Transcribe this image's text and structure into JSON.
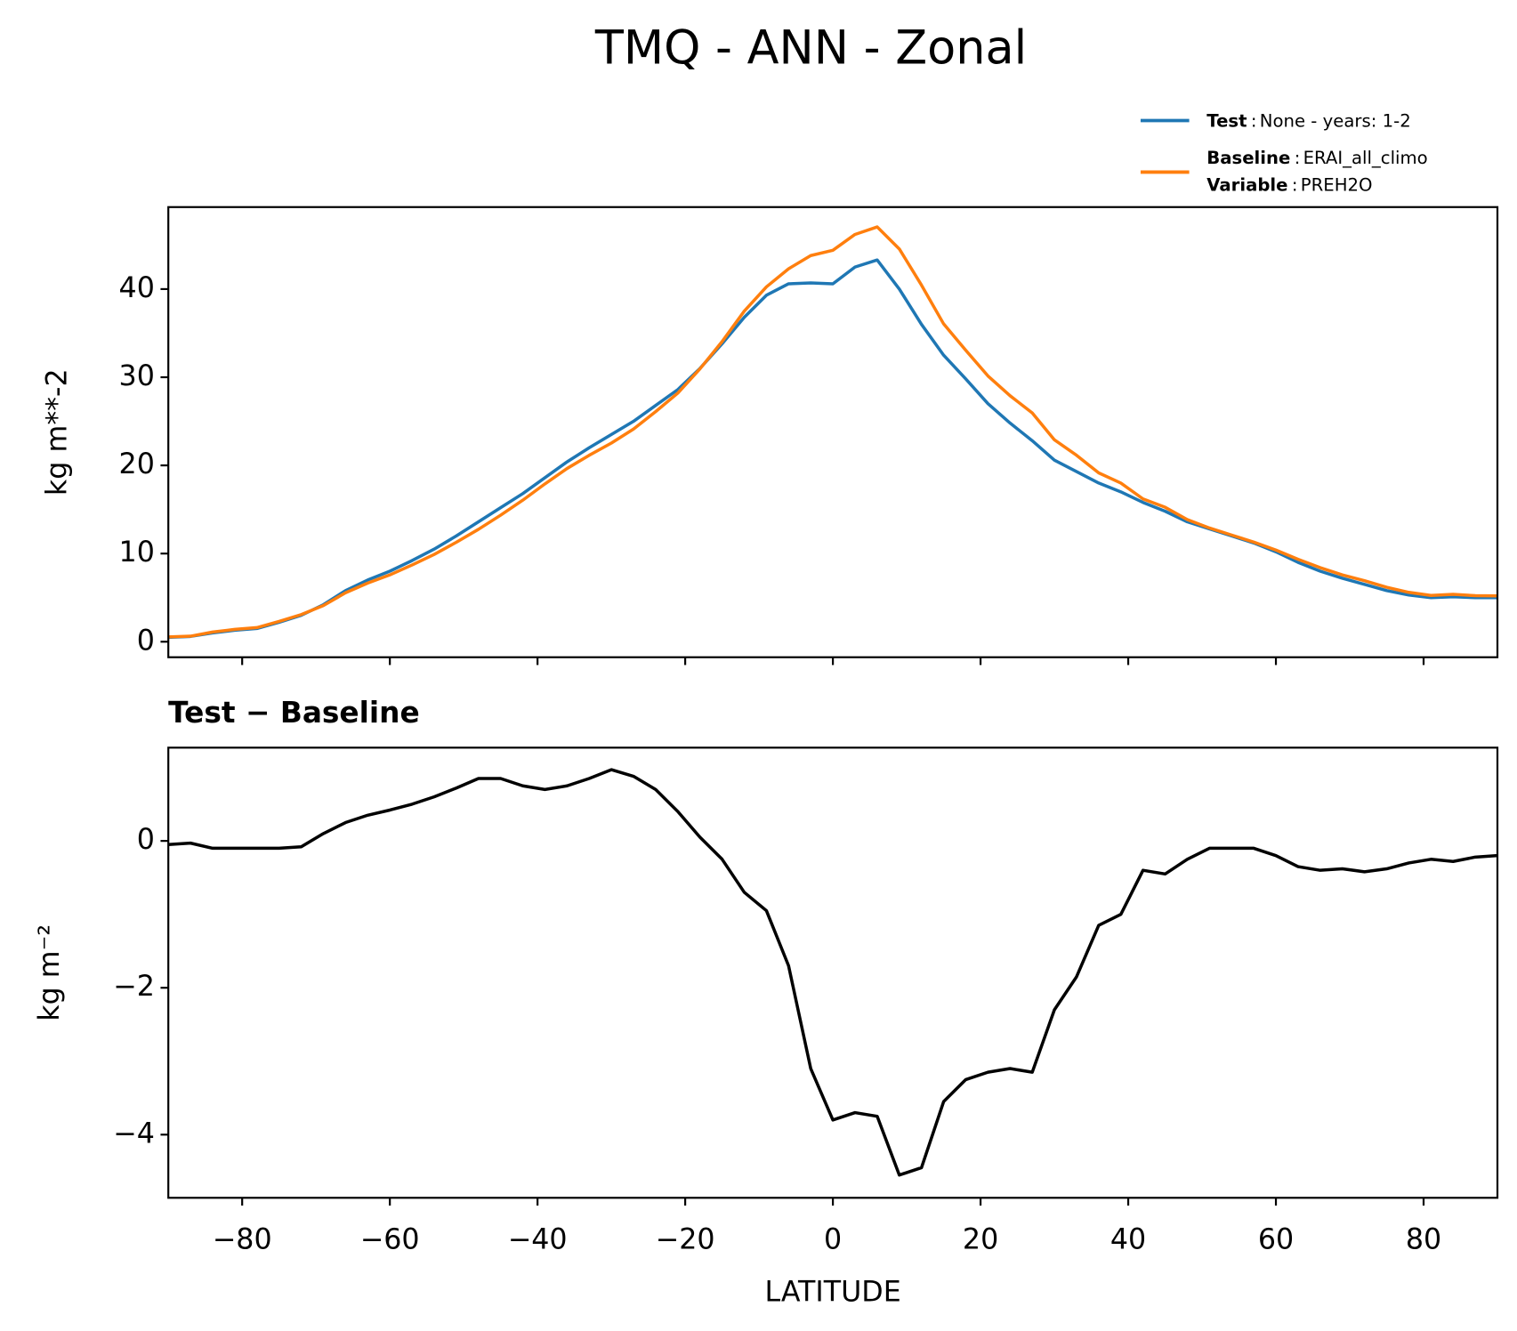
{
  "title": "TMQ - ANN - Zonal",
  "legend_separator": ":",
  "chart_data": [
    {
      "type": "line",
      "ylabel": "kg m**-2",
      "x": [
        -90,
        -87,
        -84,
        -81,
        -78,
        -75,
        -72,
        -69,
        -66,
        -63,
        -60,
        -57,
        -54,
        -51,
        -48,
        -45,
        -42,
        -39,
        -36,
        -33,
        -30,
        -27,
        -24,
        -21,
        -18,
        -15,
        -12,
        -9,
        -6,
        -3,
        0,
        3,
        6,
        9,
        12,
        15,
        18,
        21,
        24,
        27,
        30,
        33,
        36,
        39,
        42,
        45,
        48,
        51,
        54,
        57,
        60,
        63,
        66,
        69,
        72,
        75,
        78,
        81,
        84,
        87,
        90
      ],
      "series": [
        {
          "name": "Test",
          "label": "None - years: 1-2",
          "color": "#1f77b4",
          "values": [
            0.5,
            0.6,
            1.0,
            1.3,
            1.5,
            2.2,
            3.0,
            4.2,
            5.8,
            7.0,
            8.0,
            9.2,
            10.5,
            12.0,
            13.6,
            15.2,
            16.8,
            18.6,
            20.4,
            22.0,
            23.5,
            25.0,
            26.8,
            28.6,
            31.0,
            33.8,
            36.8,
            39.3,
            40.6,
            40.7,
            40.6,
            42.5,
            43.3,
            40.0,
            36.0,
            32.5,
            29.8,
            27.0,
            24.8,
            22.8,
            20.6,
            19.3,
            18.0,
            17.0,
            15.8,
            14.8,
            13.6,
            12.8,
            12.0,
            11.2,
            10.2,
            9.0,
            8.0,
            7.2,
            6.5,
            5.8,
            5.3,
            5.0,
            5.1,
            5.0,
            5.0
          ]
        },
        {
          "name": "Baseline",
          "label": "ERAI_all_climo",
          "color": "#ff7f0e",
          "values": [
            0.55,
            0.63,
            1.1,
            1.4,
            1.6,
            2.3,
            3.08,
            4.1,
            5.55,
            6.65,
            7.58,
            8.7,
            9.9,
            11.28,
            12.75,
            14.35,
            16.05,
            17.9,
            19.65,
            21.15,
            22.53,
            24.12,
            26.1,
            28.2,
            30.95,
            34.05,
            37.5,
            40.25,
            42.3,
            43.8,
            44.4,
            46.2,
            47.05,
            44.55,
            40.45,
            36.05,
            33.05,
            30.15,
            27.9,
            25.95,
            22.9,
            21.15,
            19.15,
            18.0,
            16.2,
            15.25,
            13.85,
            12.9,
            12.1,
            11.3,
            10.4,
            9.35,
            8.4,
            7.58,
            6.92,
            6.18,
            5.6,
            5.25,
            5.38,
            5.22,
            5.2
          ]
        }
      ],
      "variable": {
        "name": "Variable",
        "label": "PREH2O"
      },
      "xlim": [
        -90,
        90
      ],
      "xticks": [
        -80,
        -60,
        -40,
        -20,
        0,
        20,
        40,
        60,
        80
      ],
      "ylim": [
        -1.76,
        49.3
      ],
      "yticks": [
        0,
        10,
        20,
        30,
        40
      ]
    },
    {
      "type": "line",
      "title": "Test − Baseline",
      "ylabel": "kg m⁻²",
      "xlabel": "LATITUDE",
      "x": [
        -90,
        -87,
        -84,
        -81,
        -78,
        -75,
        -72,
        -69,
        -66,
        -63,
        -60,
        -57,
        -54,
        -51,
        -48,
        -45,
        -42,
        -39,
        -36,
        -33,
        -30,
        -27,
        -24,
        -21,
        -18,
        -15,
        -12,
        -9,
        -6,
        -3,
        0,
        3,
        6,
        9,
        12,
        15,
        18,
        21,
        24,
        27,
        30,
        33,
        36,
        39,
        42,
        45,
        48,
        51,
        54,
        57,
        60,
        63,
        66,
        69,
        72,
        75,
        78,
        81,
        84,
        87,
        90
      ],
      "series": [
        {
          "color": "#000000",
          "values": [
            -0.05,
            -0.03,
            -0.1,
            -0.1,
            -0.1,
            -0.1,
            -0.08,
            0.1,
            0.25,
            0.35,
            0.42,
            0.5,
            0.6,
            0.72,
            0.85,
            0.85,
            0.75,
            0.7,
            0.75,
            0.85,
            0.97,
            0.88,
            0.7,
            0.4,
            0.05,
            -0.25,
            -0.7,
            -0.95,
            -1.7,
            -3.1,
            -3.8,
            -3.7,
            -3.75,
            -4.55,
            -4.45,
            -3.55,
            -3.25,
            -3.15,
            -3.1,
            -3.15,
            -2.3,
            -1.85,
            -1.15,
            -1.0,
            -0.4,
            -0.45,
            -0.25,
            -0.1,
            -0.1,
            -0.1,
            -0.2,
            -0.35,
            -0.4,
            -0.38,
            -0.42,
            -0.38,
            -0.3,
            -0.25,
            -0.28,
            -0.22,
            -0.2
          ]
        }
      ],
      "xlim": [
        -90,
        90
      ],
      "xticks": [
        {
          "value": -80,
          "label": "−80"
        },
        {
          "value": -60,
          "label": "−60"
        },
        {
          "value": -40,
          "label": "−40"
        },
        {
          "value": -20,
          "label": "−20"
        },
        0,
        20,
        40,
        60,
        80
      ],
      "ylim": [
        -4.86,
        1.27
      ],
      "yticks": [
        {
          "value": -4,
          "label": "−4"
        },
        {
          "value": -2,
          "label": "−2"
        },
        0
      ]
    }
  ]
}
